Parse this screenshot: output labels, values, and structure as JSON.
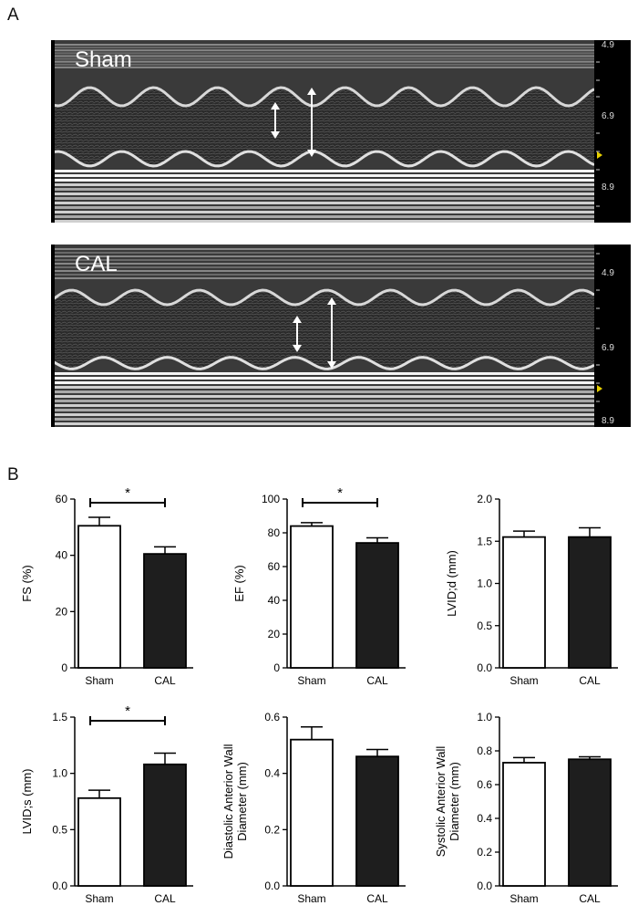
{
  "panels": {
    "a": "A",
    "b": "B"
  },
  "echo": [
    {
      "label": "Sham",
      "scale_ticks": [
        "4.9",
        "6.9",
        "8.9"
      ]
    },
    {
      "label": "CAL",
      "scale_ticks": [
        "4.9",
        "6.9",
        "8.9"
      ]
    }
  ],
  "colors": {
    "sham": "#ffffff",
    "cal": "#1e1e1e",
    "marker": "#e8d000"
  },
  "chart_data": [
    {
      "type": "bar",
      "categories": [
        "Sham",
        "CAL"
      ],
      "values": [
        50.5,
        40.5
      ],
      "errors": [
        3.0,
        2.5
      ],
      "ylabel": "FS (%)",
      "ylim": [
        0,
        60
      ],
      "yticks": [
        "0",
        "20",
        "40",
        "60"
      ],
      "significance": "*"
    },
    {
      "type": "bar",
      "categories": [
        "Sham",
        "CAL"
      ],
      "values": [
        84.0,
        74.0
      ],
      "errors": [
        2.0,
        3.0
      ],
      "ylabel": "EF (%)",
      "ylim": [
        0,
        100
      ],
      "yticks": [
        "0",
        "20",
        "40",
        "60",
        "80",
        "100"
      ],
      "significance": "*"
    },
    {
      "type": "bar",
      "categories": [
        "Sham",
        "CAL"
      ],
      "values": [
        1.55,
        1.55
      ],
      "errors": [
        0.07,
        0.11
      ],
      "ylabel": "LVID;d (mm)",
      "ylim": [
        0,
        2.0
      ],
      "yticks": [
        "0.0",
        "0.5",
        "1.0",
        "1.5",
        "2.0"
      ],
      "significance": ""
    },
    {
      "type": "bar",
      "categories": [
        "Sham",
        "CAL"
      ],
      "values": [
        0.78,
        1.08
      ],
      "errors": [
        0.07,
        0.1
      ],
      "ylabel": "LVID;s (mm)",
      "ylim": [
        0,
        1.5
      ],
      "yticks": [
        "0.0",
        "0.5",
        "1.0",
        "1.5"
      ],
      "significance": "*"
    },
    {
      "type": "bar",
      "categories": [
        "Sham",
        "CAL"
      ],
      "values": [
        0.52,
        0.46
      ],
      "errors": [
        0.045,
        0.025
      ],
      "ylabel": [
        "Diastolic Anterior Wall",
        "Diameter (mm)"
      ],
      "ylim": [
        0,
        0.6
      ],
      "yticks": [
        "0.0",
        "0.2",
        "0.4",
        "0.6"
      ],
      "significance": ""
    },
    {
      "type": "bar",
      "categories": [
        "Sham",
        "CAL"
      ],
      "values": [
        0.73,
        0.75
      ],
      "errors": [
        0.03,
        0.015
      ],
      "ylabel": [
        "Systolic Anterior Wall",
        "Diameter (mm)"
      ],
      "ylim": [
        0,
        1.0
      ],
      "yticks": [
        "0.0",
        "0.2",
        "0.4",
        "0.6",
        "0.8",
        "1.0"
      ],
      "significance": ""
    }
  ]
}
